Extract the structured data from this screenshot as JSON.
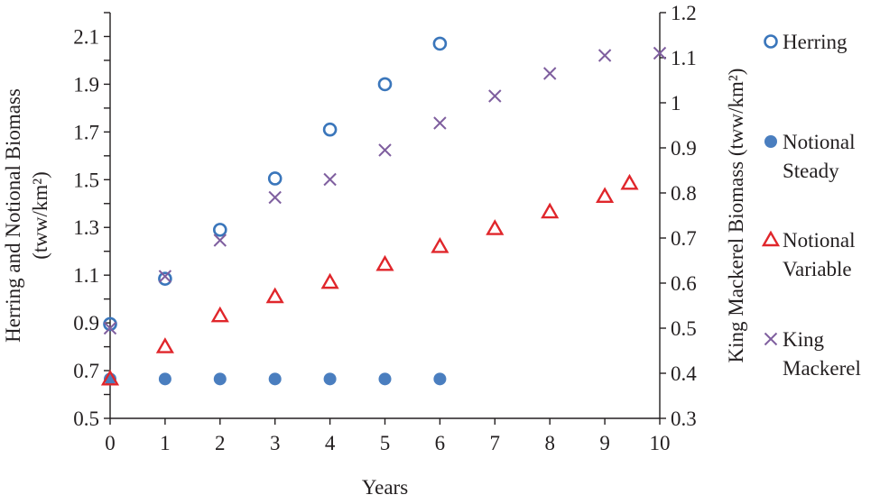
{
  "chart_data": {
    "type": "scatter",
    "xlabel": "Years",
    "ylabel_left": [
      "Herring and Notional Biomass",
      "(tww/km²)"
    ],
    "ylabel_right": "King Mackerel Biomass (tww/km²)",
    "xlim": [
      0,
      10
    ],
    "ylim_left": [
      0.5,
      2.2
    ],
    "ylim_right": [
      0.3,
      1.2
    ],
    "x_ticks": [
      "0",
      "1",
      "2",
      "3",
      "4",
      "5",
      "6",
      "7",
      "8",
      "9",
      "10"
    ],
    "y_ticks_left": [
      "0.5",
      "0.7",
      "0.9",
      "1.1",
      "1.3",
      "1.5",
      "1.7",
      "1.9",
      "2.1"
    ],
    "y_ticks_right": [
      "0.3",
      "0.4",
      "0.5",
      "0.6",
      "0.7",
      "0.8",
      "0.9",
      "1",
      "1.1",
      "1.2"
    ],
    "grid": false,
    "legend_position": "right",
    "series": [
      {
        "name": "Herring",
        "marker": "open-circle",
        "axis": "left",
        "color": "#3a76bb",
        "x": [
          0,
          1,
          2,
          3,
          4,
          5,
          6
        ],
        "y": [
          0.895,
          1.085,
          1.29,
          1.505,
          1.71,
          1.9,
          2.07
        ]
      },
      {
        "name": "Notional Steady",
        "marker": "filled-circle",
        "axis": "left",
        "color": "#4a7ebf",
        "x": [
          0,
          1,
          2,
          3,
          4,
          5,
          6
        ],
        "y": [
          0.665,
          0.665,
          0.665,
          0.665,
          0.665,
          0.665,
          0.665
        ]
      },
      {
        "name": "Notional Variable",
        "marker": "open-triangle",
        "axis": "left",
        "color": "#e0262b",
        "x": [
          0,
          1,
          2,
          3,
          4,
          5,
          6,
          7,
          8,
          9,
          9.45
        ],
        "y": [
          0.665,
          0.8,
          0.93,
          1.01,
          1.07,
          1.145,
          1.22,
          1.295,
          1.365,
          1.43,
          1.485
        ]
      },
      {
        "name": "King Mackerel",
        "marker": "x",
        "axis": "right",
        "color": "#7f5f9f",
        "x": [
          0,
          1,
          2,
          3,
          4,
          5,
          6,
          7,
          8,
          9,
          10
        ],
        "y": [
          0.5,
          0.615,
          0.695,
          0.79,
          0.83,
          0.895,
          0.955,
          1.015,
          1.065,
          1.105,
          1.11
        ]
      }
    ],
    "legend": [
      {
        "lines": [
          "Herring"
        ],
        "series": 0
      },
      {
        "lines": [
          "Notional",
          "Steady"
        ],
        "series": 1
      },
      {
        "lines": [
          "Notional",
          "Variable"
        ],
        "series": 2
      },
      {
        "lines": [
          "King",
          "Mackerel"
        ],
        "series": 3
      }
    ]
  }
}
